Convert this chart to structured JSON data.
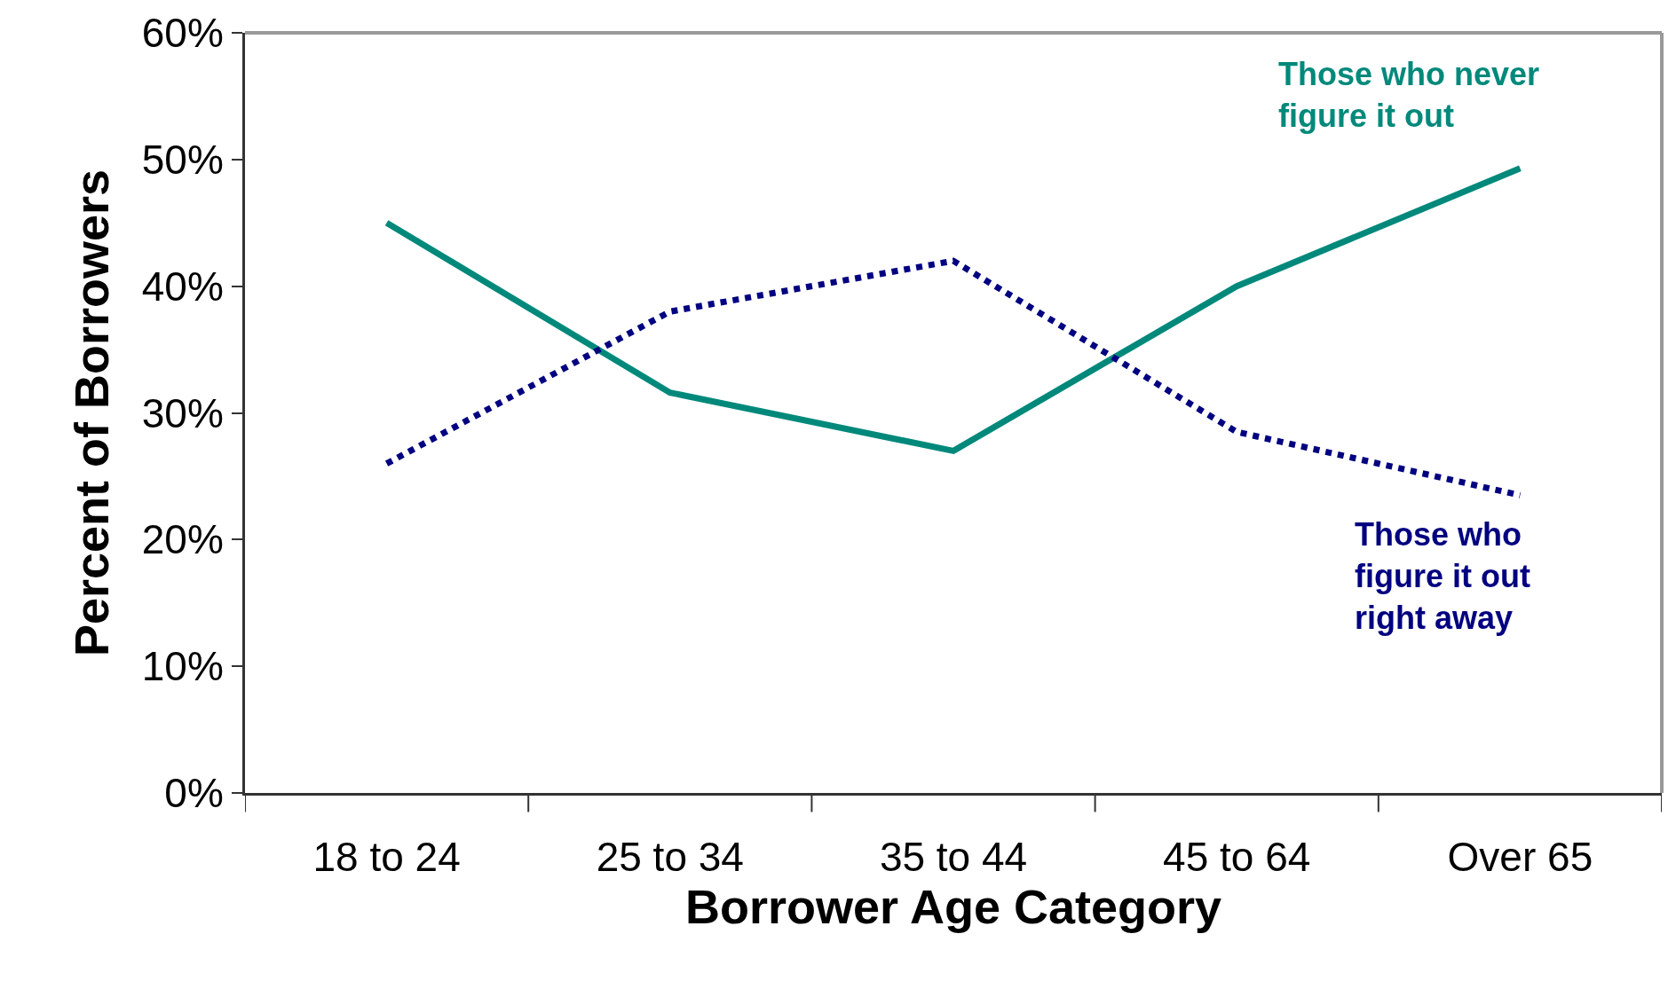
{
  "chart_data": {
    "type": "line",
    "xlabel": "Borrower Age Category",
    "ylabel": "Percent of Borrowers",
    "categories": [
      "18 to 24",
      "25 to 34",
      "35 to 44",
      "45 to 64",
      "Over 65"
    ],
    "series": [
      {
        "name": "Those who never figure it out",
        "color": "#00897b",
        "values": [
          45,
          31.6,
          27,
          40,
          49.3
        ],
        "line_style": "solid"
      },
      {
        "name": "Those who figure it out right away",
        "color": "#000080",
        "values": [
          26,
          38,
          42,
          28.5,
          23.5
        ],
        "line_style": "dotted"
      }
    ],
    "ylim": [
      0,
      60
    ],
    "yticks": [
      {
        "value": 0,
        "label": "0%"
      },
      {
        "value": 10,
        "label": "10%"
      },
      {
        "value": 20,
        "label": "20%"
      },
      {
        "value": 30,
        "label": "30%"
      },
      {
        "value": 40,
        "label": "40%"
      },
      {
        "value": 50,
        "label": "50%"
      },
      {
        "value": 60,
        "label": "60%"
      }
    ],
    "legend": false,
    "grid": false,
    "marker": "none"
  }
}
